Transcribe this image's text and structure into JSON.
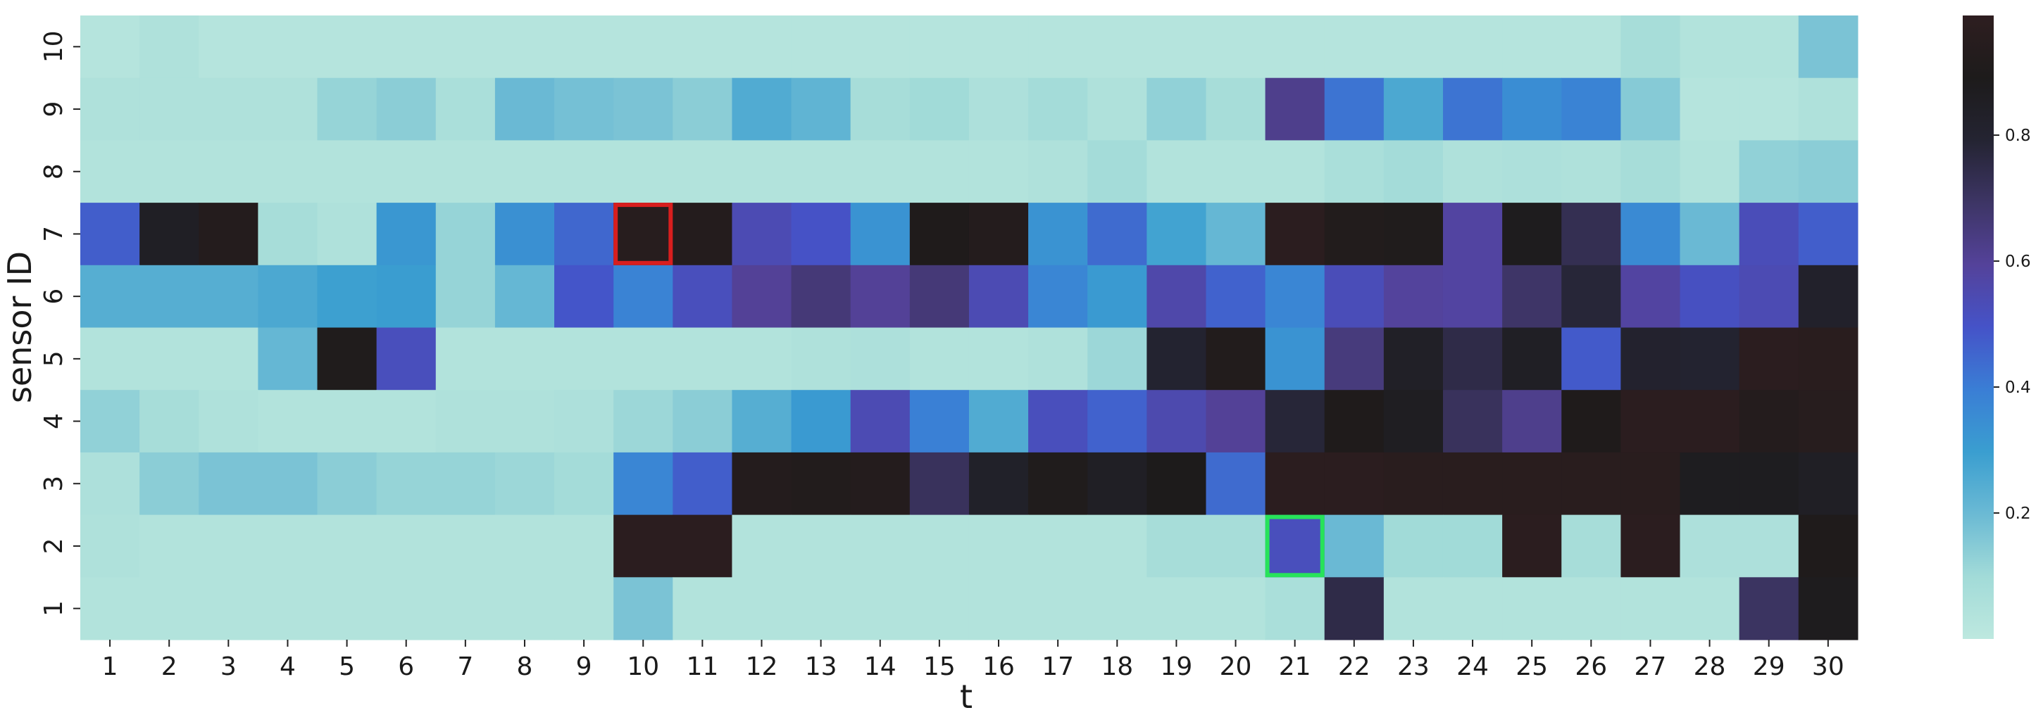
{
  "chart_data": {
    "type": "heatmap",
    "title": "",
    "xlabel": "t",
    "ylabel": "sensor ID",
    "x_categories": [
      "1",
      "2",
      "3",
      "4",
      "5",
      "6",
      "7",
      "8",
      "9",
      "10",
      "11",
      "12",
      "13",
      "14",
      "15",
      "16",
      "17",
      "18",
      "19",
      "20",
      "21",
      "22",
      "23",
      "24",
      "25",
      "26",
      "27",
      "28",
      "29",
      "30"
    ],
    "y_categories_top_to_bottom": [
      "10",
      "9",
      "8",
      "7",
      "6",
      "5",
      "4",
      "3",
      "2",
      "1"
    ],
    "values_top_to_bottom": [
      [
        0.03,
        0.05,
        0.03,
        0.03,
        0.03,
        0.03,
        0.03,
        0.03,
        0.03,
        0.03,
        0.03,
        0.03,
        0.03,
        0.03,
        0.03,
        0.03,
        0.03,
        0.03,
        0.03,
        0.03,
        0.03,
        0.03,
        0.03,
        0.03,
        0.03,
        0.03,
        0.08,
        0.04,
        0.04,
        0.17
      ],
      [
        0.05,
        0.05,
        0.05,
        0.05,
        0.12,
        0.14,
        0.07,
        0.2,
        0.18,
        0.17,
        0.14,
        0.25,
        0.22,
        0.08,
        0.1,
        0.06,
        0.09,
        0.05,
        0.13,
        0.08,
        0.62,
        0.42,
        0.26,
        0.42,
        0.35,
        0.38,
        0.15,
        0.03,
        0.03,
        0.05
      ],
      [
        0.04,
        0.04,
        0.04,
        0.04,
        0.04,
        0.04,
        0.04,
        0.04,
        0.04,
        0.04,
        0.04,
        0.04,
        0.04,
        0.04,
        0.04,
        0.04,
        0.05,
        0.09,
        0.04,
        0.04,
        0.04,
        0.07,
        0.09,
        0.05,
        0.06,
        0.05,
        0.08,
        0.04,
        0.13,
        0.14
      ],
      [
        0.47,
        0.85,
        0.93,
        0.08,
        0.05,
        0.32,
        0.12,
        0.34,
        0.45,
        0.95,
        0.93,
        0.54,
        0.5,
        0.33,
        0.9,
        0.93,
        0.33,
        0.44,
        0.28,
        0.21,
        0.97,
        0.92,
        0.91,
        0.58,
        0.88,
        0.73,
        0.36,
        0.2,
        0.53,
        0.47
      ],
      [
        0.24,
        0.24,
        0.24,
        0.26,
        0.29,
        0.3,
        0.12,
        0.21,
        0.49,
        0.38,
        0.52,
        0.6,
        0.66,
        0.6,
        0.66,
        0.54,
        0.37,
        0.31,
        0.56,
        0.46,
        0.37,
        0.53,
        0.59,
        0.58,
        0.69,
        0.78,
        0.58,
        0.51,
        0.54,
        0.82
      ],
      [
        0.04,
        0.04,
        0.04,
        0.21,
        0.91,
        0.52,
        0.04,
        0.04,
        0.04,
        0.04,
        0.04,
        0.04,
        0.05,
        0.06,
        0.04,
        0.04,
        0.05,
        0.11,
        0.8,
        0.92,
        0.33,
        0.65,
        0.84,
        0.75,
        0.85,
        0.48,
        0.81,
        0.8,
        0.97,
        0.96
      ],
      [
        0.13,
        0.08,
        0.05,
        0.04,
        0.04,
        0.04,
        0.05,
        0.05,
        0.06,
        0.11,
        0.14,
        0.24,
        0.31,
        0.54,
        0.39,
        0.25,
        0.52,
        0.46,
        0.55,
        0.6,
        0.78,
        0.9,
        0.86,
        0.71,
        0.62,
        0.9,
        0.97,
        0.97,
        0.93,
        0.95
      ],
      [
        0.06,
        0.14,
        0.17,
        0.17,
        0.14,
        0.12,
        0.12,
        0.11,
        0.09,
        0.37,
        0.47,
        0.93,
        0.92,
        0.93,
        0.71,
        0.83,
        0.91,
        0.85,
        0.89,
        0.44,
        0.97,
        0.97,
        0.96,
        0.96,
        0.96,
        0.96,
        0.96,
        0.87,
        0.87,
        0.85
      ],
      [
        0.05,
        0.04,
        0.04,
        0.04,
        0.04,
        0.04,
        0.04,
        0.04,
        0.04,
        0.97,
        0.97,
        0.04,
        0.04,
        0.04,
        0.04,
        0.04,
        0.04,
        0.04,
        0.08,
        0.08,
        0.52,
        0.2,
        0.1,
        0.1,
        0.97,
        0.08,
        0.97,
        0.06,
        0.06,
        0.9
      ],
      [
        0.04,
        0.04,
        0.04,
        0.04,
        0.04,
        0.04,
        0.04,
        0.04,
        0.04,
        0.17,
        0.04,
        0.04,
        0.04,
        0.04,
        0.04,
        0.04,
        0.04,
        0.04,
        0.04,
        0.04,
        0.07,
        0.75,
        0.04,
        0.04,
        0.04,
        0.04,
        0.04,
        0.04,
        0.7,
        0.88
      ]
    ],
    "colorbar": {
      "vmin": 0,
      "vmax": 0.99,
      "ticks": [
        0.2,
        0.4,
        0.6,
        0.8
      ],
      "tick_labels": [
        "0.2",
        "0.4",
        "0.6",
        "0.8"
      ],
      "colormap": "icefire-like (light aqua → blue → purple → near-black)"
    },
    "highlights": [
      {
        "x": "10",
        "y": "7",
        "color": "#d81e1e"
      },
      {
        "x": "21",
        "y": "2",
        "color": "#27e35a"
      }
    ],
    "legend": "none",
    "grid": false
  }
}
